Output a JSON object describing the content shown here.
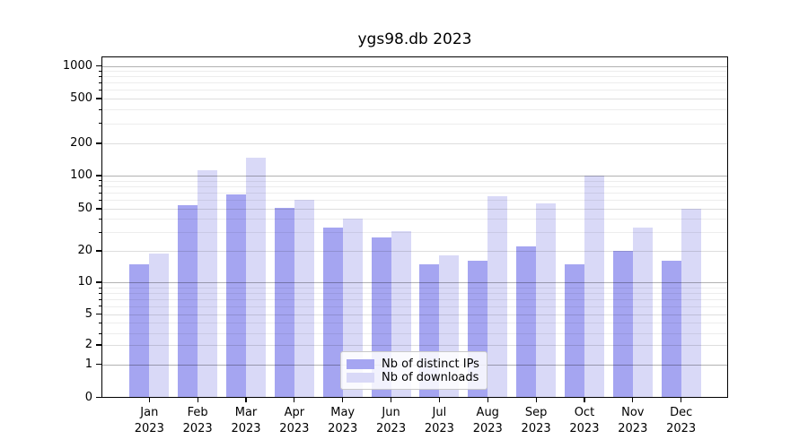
{
  "chart_data": {
    "type": "bar",
    "title": "ygs98.db 2023",
    "categories": [
      "Jan 2023",
      "Feb 2023",
      "Mar 2023",
      "Apr 2023",
      "May 2023",
      "Jun 2023",
      "Jul 2023",
      "Aug 2023",
      "Sep 2023",
      "Oct 2023",
      "Nov 2023",
      "Dec 2023"
    ],
    "series": [
      {
        "name": "Nb of distinct IPs",
        "color": "#a5a5f1",
        "values": [
          15,
          54,
          68,
          51,
          33,
          27,
          15,
          16,
          22,
          15,
          20,
          16
        ]
      },
      {
        "name": "Nb of downloads",
        "color": "#d9d9f7",
        "values": [
          19,
          112,
          147,
          60,
          40,
          31,
          18,
          65,
          56,
          100,
          33,
          50
        ]
      }
    ],
    "xlabel": "",
    "ylabel": "",
    "yscale": "symlog",
    "ylim": [
      0,
      1200
    ],
    "yticks": [
      0,
      1,
      2,
      5,
      10,
      20,
      50,
      100,
      200,
      500,
      1000
    ],
    "grid": "both",
    "legend_position": "lower center"
  },
  "axis": {
    "ytick_labels": [
      "0",
      "1",
      "2",
      "5",
      "10",
      "20",
      "50",
      "100",
      "200",
      "500",
      "1000"
    ],
    "minor_tick_values": [
      3,
      4,
      6,
      7,
      8,
      9,
      30,
      40,
      60,
      70,
      80,
      90,
      300,
      400,
      600,
      700,
      800,
      900
    ],
    "mid_tick_values": [
      2,
      5,
      20,
      50,
      200,
      500
    ],
    "strong_tick_values": [
      1,
      10,
      100,
      1000
    ]
  },
  "colors": {
    "bar_distinct_ips": "#a5a5f1",
    "bar_downloads": "#d9d9f7",
    "grid_strong": "rgba(0,0,0,0.30)",
    "grid_mid": "rgba(0,0,0,0.13)",
    "grid_minor": "rgba(0,0,0,0.07)",
    "axis_line": "#000000",
    "legend_border": "#c9c9c9"
  }
}
